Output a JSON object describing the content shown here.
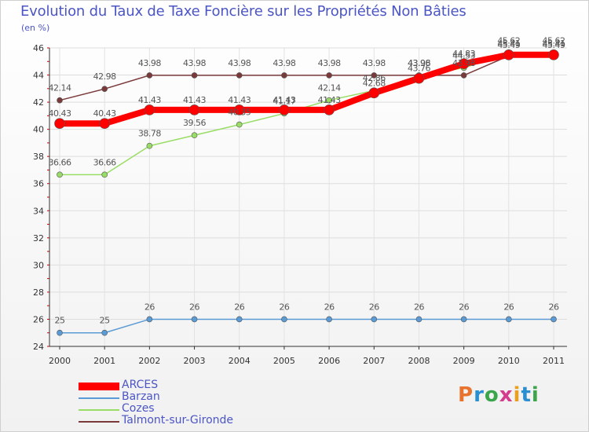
{
  "header": {
    "title": "Evolution du Taux de Taxe Foncière sur les Propriétés Non Bâties",
    "unit": "(en %)"
  },
  "logo": {
    "text": "Proxiti",
    "colors": [
      "#e8732e",
      "#2a8fd0",
      "#3aa54a",
      "#d63c8e",
      "#e8a020",
      "#2a8fd0",
      "#3aa54a"
    ]
  },
  "chart_data": {
    "type": "line",
    "title": "Evolution du Taux de Taxe Foncière sur les Propriétés Non Bâties",
    "ylabel": "(en %)",
    "xlabel": "",
    "x": [
      "2000",
      "2001",
      "2002",
      "2003",
      "2004",
      "2005",
      "2006",
      "2007",
      "2008",
      "2009",
      "2010",
      "2011"
    ],
    "ylim": [
      24,
      46
    ],
    "yticks": [
      24,
      26,
      28,
      30,
      32,
      34,
      36,
      38,
      40,
      42,
      44,
      46
    ],
    "grid": true,
    "legend_position": "bottom-left",
    "series": [
      {
        "name": "ARCES",
        "color": "#ff0000",
        "values": [
          40.43,
          40.43,
          41.43,
          41.43,
          41.43,
          41.43,
          41.43,
          42.68,
          43.76,
          44.83,
          45.49,
          45.49
        ],
        "labels": [
          "40.43",
          "40.43",
          "41.43",
          "41.43",
          "41.43",
          "41.43",
          "41.43",
          "42.68",
          "43.76",
          "44.83",
          "45.49",
          "45.49"
        ]
      },
      {
        "name": "Barzan",
        "color": "#5b9bd5",
        "values": [
          25,
          25,
          26,
          26,
          26,
          26,
          26,
          26,
          26,
          26,
          26,
          26
        ],
        "labels": [
          "25",
          "25",
          "26",
          "26",
          "26",
          "26",
          "26",
          "26",
          "26",
          "26",
          "26",
          "26"
        ]
      },
      {
        "name": "Cozes",
        "color": "#99dd66",
        "values": [
          36.66,
          36.66,
          38.78,
          39.56,
          40.35,
          41.17,
          42.14,
          42.86,
          43.96,
          44.53,
          45.62,
          45.62
        ],
        "labels": [
          "36.66",
          "36.66",
          "38.78",
          "39.56",
          "40.35",
          "41.17",
          "42.14",
          "42.86",
          "43.96",
          "44.53",
          "45.62",
          "45.62"
        ]
      },
      {
        "name": "Talmont-sur-Gironde",
        "color": "#7a3a3a",
        "values": [
          42.14,
          42.98,
          43.98,
          43.98,
          43.98,
          43.98,
          43.98,
          43.98,
          43.98,
          43.98,
          45.41,
          45.41
        ],
        "labels": [
          "42.14",
          "42.98",
          "43.98",
          "43.98",
          "43.98",
          "43.98",
          "43.98",
          "43.98",
          "43.98",
          "43.98",
          "45.41",
          "45.41"
        ]
      }
    ]
  }
}
